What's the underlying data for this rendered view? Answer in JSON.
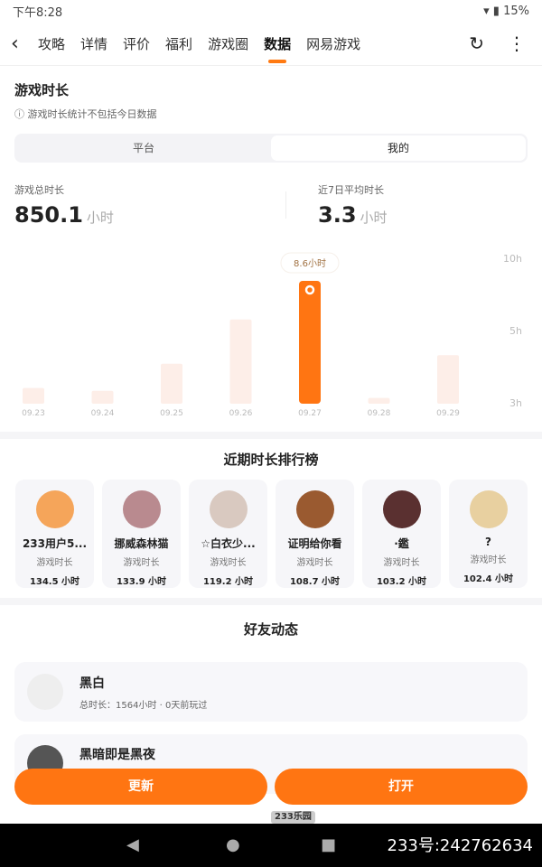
{
  "status": {
    "time": "下午8:28",
    "battery": "15%"
  },
  "nav": {
    "tabs": [
      "攻略",
      "详情",
      "评价",
      "福利",
      "游戏圈",
      "数据",
      "网易游戏"
    ],
    "active": 5
  },
  "duration": {
    "title": "游戏时长",
    "note": "ⓘ 游戏时长统计不包括今日数据",
    "segments": [
      "平台",
      "我的"
    ],
    "total_label": "游戏总时长",
    "total_value": "850.1",
    "unit": "小时",
    "avg_label": "近7日平均时长",
    "avg_value": "3.3"
  },
  "chart_data": {
    "type": "bar",
    "categories": [
      "09.23",
      "09.24",
      "09.25",
      "09.26",
      "09.27",
      "09.28",
      "09.29"
    ],
    "values": [
      1.1,
      0.9,
      2.8,
      5.9,
      8.6,
      0.4,
      3.4
    ],
    "highlight_index": 4,
    "tooltip": "8.6小时",
    "y_tick_labels": [
      "10h",
      "5h",
      "3h"
    ],
    "colors": {
      "highlight": "#ff7512",
      "normal": "#fdeee8"
    }
  },
  "ranking": {
    "title": "近期时长排行榜",
    "stat_label": "游戏时长",
    "items": [
      {
        "name": "233用户5...",
        "hours": "134.5 小时",
        "color": "#f5a55a"
      },
      {
        "name": "挪威森林猫",
        "hours": "133.9 小时",
        "color": "#b98a8f"
      },
      {
        "name": "☆白衣少...",
        "hours": "119.2 小时",
        "color": "#d9c9c0"
      },
      {
        "name": "证明给你看",
        "hours": "108.7 小时",
        "color": "#9a5a30"
      },
      {
        "name": "·鑑",
        "hours": "103.2 小时",
        "color": "#5a3030"
      },
      {
        "name": "?",
        "hours": "102.4 小时",
        "color": "#e8d0a0"
      }
    ]
  },
  "friends": {
    "title": "好友动态",
    "items": [
      {
        "name": "黑白",
        "sub": "总时长：1564小时 · 0天前玩过"
      },
      {
        "name": "黑暗即是黑夜",
        "sub": ""
      }
    ]
  },
  "buttons": {
    "update": "更新",
    "open": "打开"
  },
  "watermark": {
    "logo": "233乐园",
    "id": "233号:242762634"
  }
}
